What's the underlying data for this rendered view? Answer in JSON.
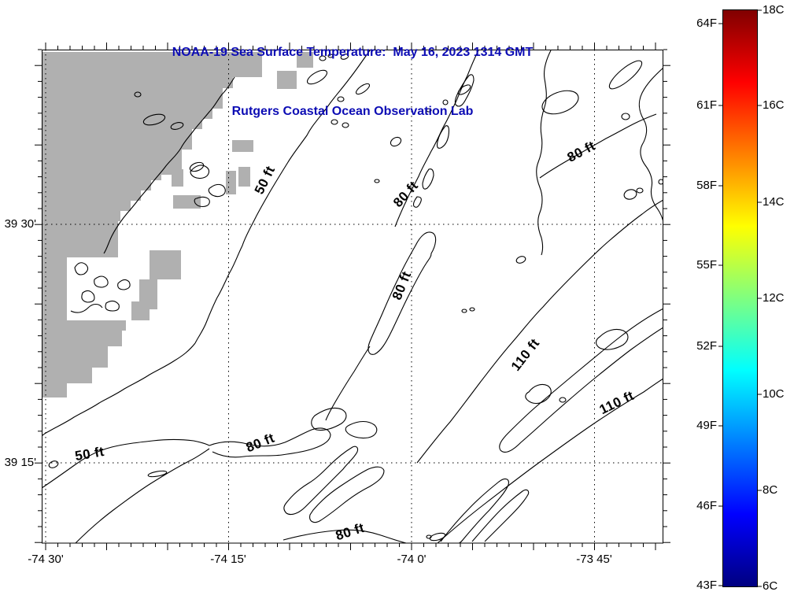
{
  "title": {
    "line1": "NOAA-19 Sea Surface Temperature:  May 16, 2023 1314 GMT",
    "line2": "Rutgers Coastal Ocean Observation Lab",
    "color": "#0c0cb4"
  },
  "axes": {
    "x_ticks": [
      {
        "label": "-74 30'"
      },
      {
        "label": "-74 15'"
      },
      {
        "label": "-74 0'"
      },
      {
        "label": "-73 45'"
      }
    ],
    "y_ticks": [
      {
        "label": "39 30'"
      },
      {
        "label": "39 15'"
      }
    ]
  },
  "contour_labels": [
    {
      "text": "50 ft"
    },
    {
      "text": "80 ft"
    },
    {
      "text": "80 ft"
    },
    {
      "text": "80 ft"
    },
    {
      "text": "110 ft"
    },
    {
      "text": "110 ft"
    },
    {
      "text": "80 ft"
    },
    {
      "text": "50 ft"
    },
    {
      "text": "80 ft"
    }
  ],
  "colorbar": {
    "f_labels": [
      {
        "text": "64F"
      },
      {
        "text": "61F"
      },
      {
        "text": "58F"
      },
      {
        "text": "55F"
      },
      {
        "text": "52F"
      },
      {
        "text": "49F"
      },
      {
        "text": "46F"
      },
      {
        "text": "43F"
      }
    ],
    "c_labels": [
      {
        "text": "18C"
      },
      {
        "text": "16C"
      },
      {
        "text": "14C"
      },
      {
        "text": "12C"
      },
      {
        "text": "10C"
      },
      {
        "text": "8C"
      },
      {
        "text": "6C"
      }
    ]
  },
  "chart_data": {
    "type": "contour-map",
    "title": "NOAA-19 Sea Surface Temperature:  May 16, 2023 1314 GMT",
    "subtitle": "Rutgers Coastal Ocean Observation Lab",
    "x_tick_labels": [
      "-74 30'",
      "-74 15'",
      "-74 0'",
      "-73 45'"
    ],
    "y_tick_labels": [
      "39 30'",
      "39 15'"
    ],
    "depth_contour_levels_ft": [
      50,
      80,
      110
    ],
    "contour_label_instances": [
      "50 ft",
      "80 ft",
      "80 ft",
      "80 ft",
      "110 ft",
      "110 ft",
      "80 ft",
      "50 ft",
      "80 ft"
    ],
    "colorbar": {
      "fahrenheit_ticks": [
        "64F",
        "61F",
        "58F",
        "55F",
        "52F",
        "49F",
        "46F",
        "43F"
      ],
      "celsius_ticks": [
        "18C",
        "16C",
        "14C",
        "12C",
        "10C",
        "8C",
        "6C"
      ],
      "gradient_top_to_bottom": [
        "#800000",
        "#ff0000",
        "#ffff00",
        "#00ffff",
        "#0000ff",
        "#000080"
      ]
    },
    "land_mask_color": "#b0b0b0",
    "grid": "dotted graticule at labeled ticks"
  }
}
